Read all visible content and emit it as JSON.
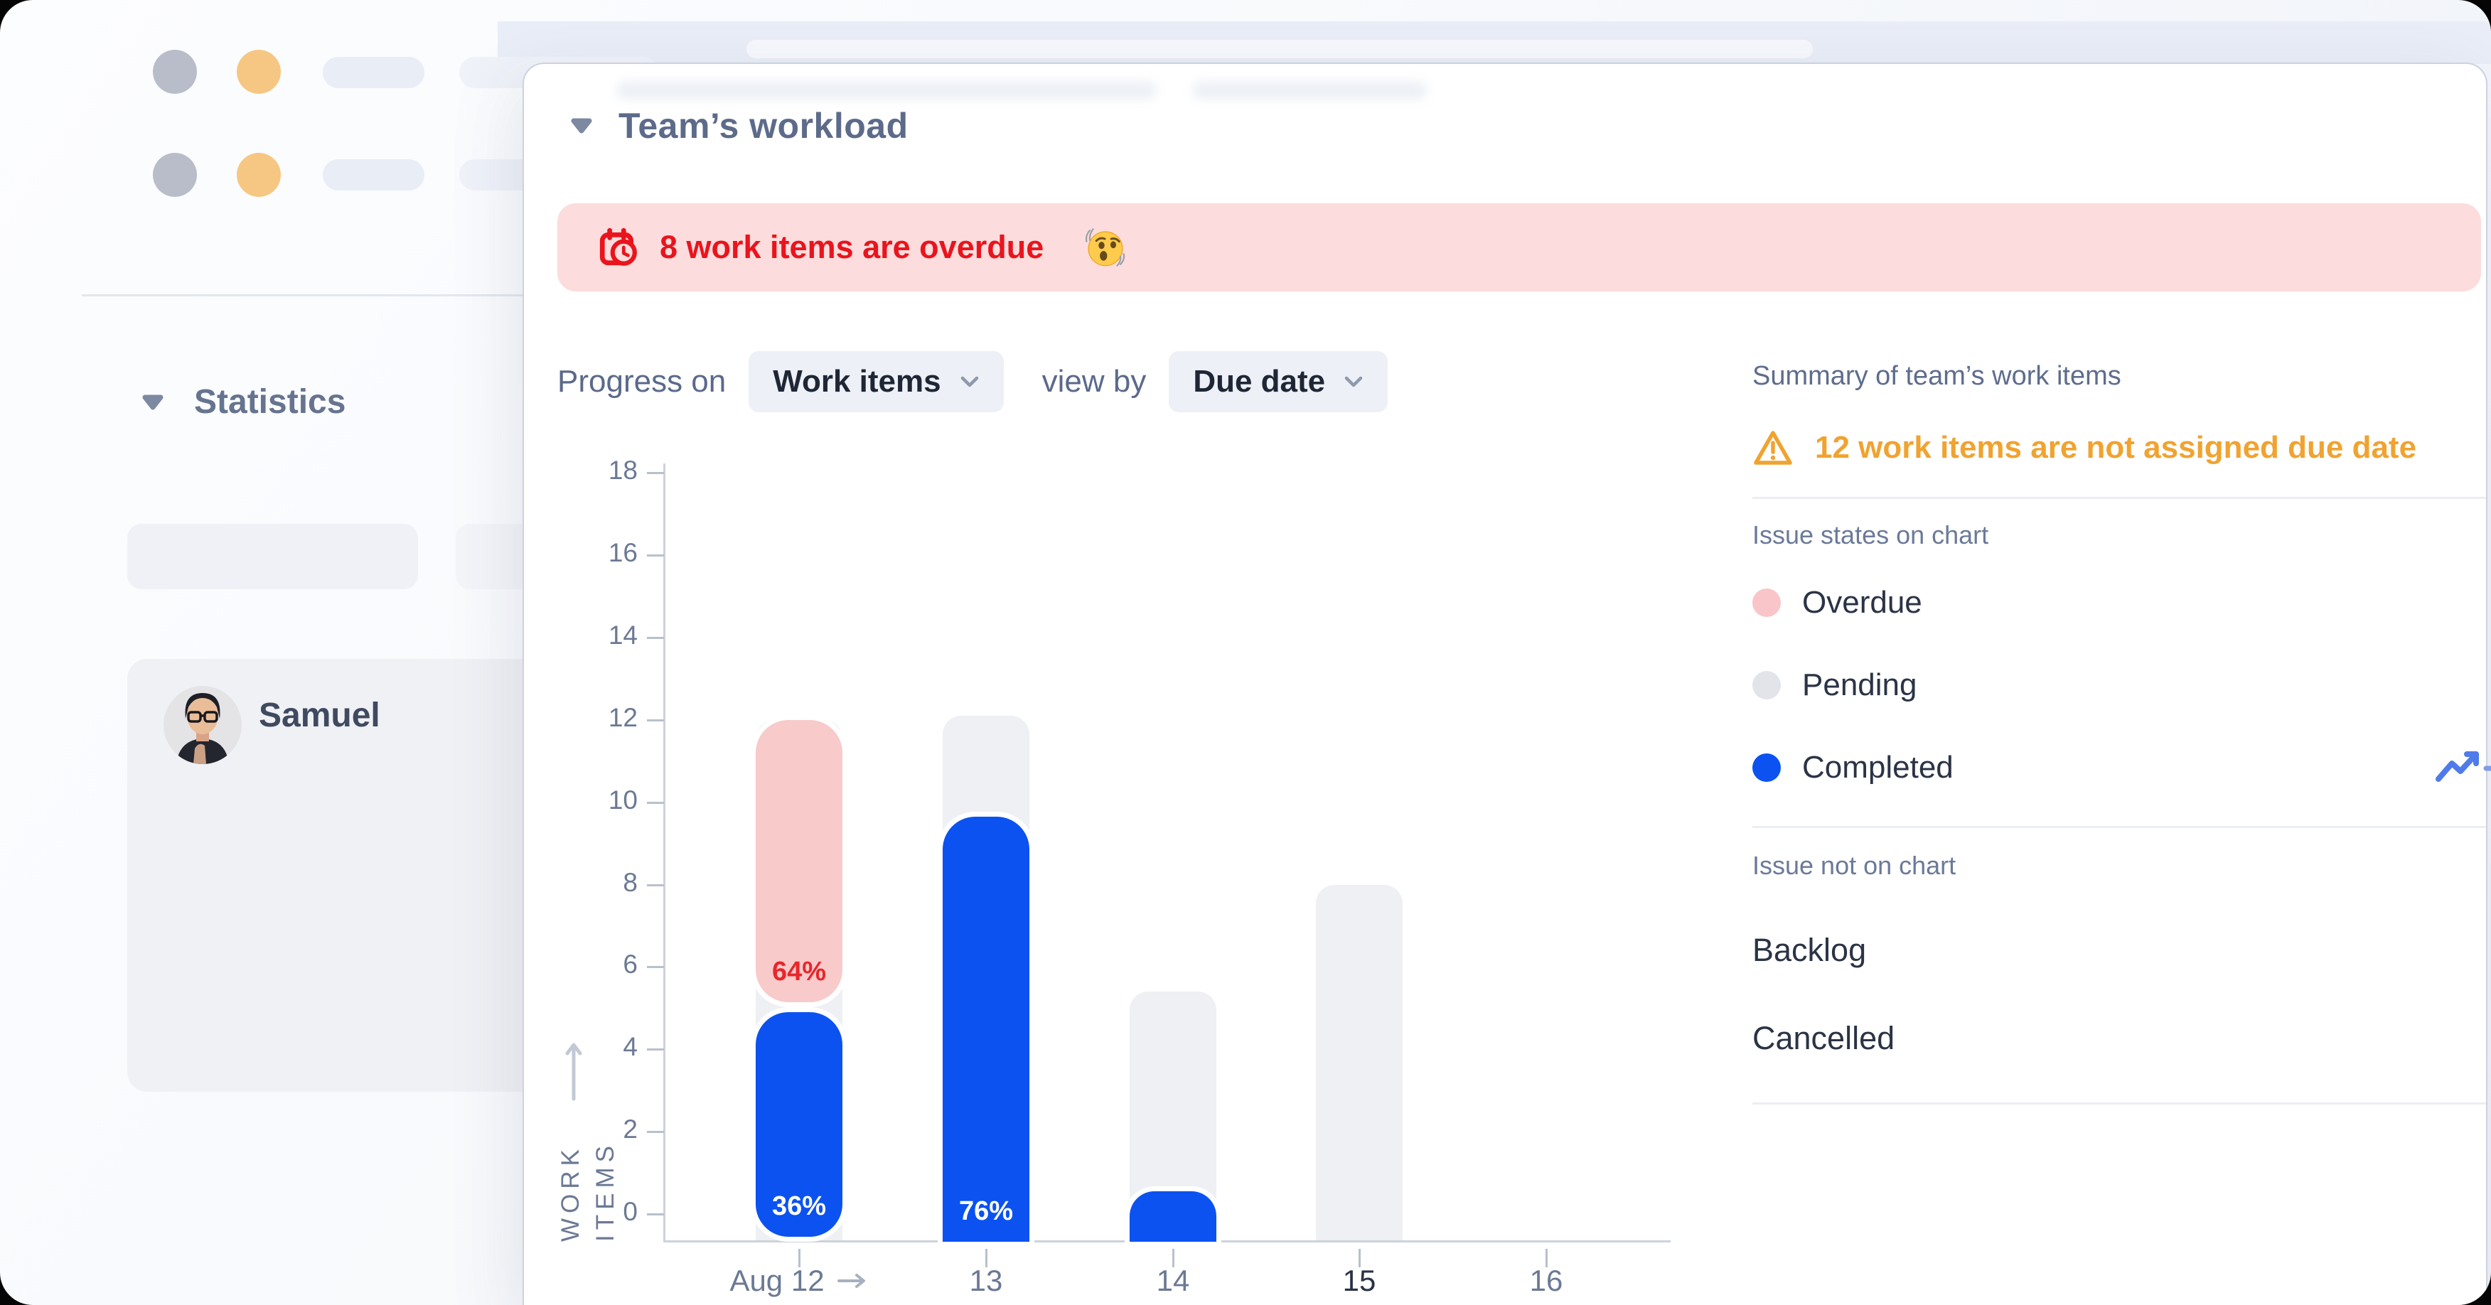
{
  "sidebar": {
    "statistics_label": "Statistics",
    "user_name": "Samuel"
  },
  "panel": {
    "title": "Team’s workload",
    "alert": {
      "text": "8 work items are overdue",
      "bg": "#fcdcdc",
      "color": "#e9141d",
      "icon": "calendar-overdue",
      "emoji": "shaking-face"
    },
    "controls": {
      "progress_on_label": "Progress on",
      "work_items_value": "Work items",
      "view_by_label": "view by",
      "due_date_value": "Due date"
    }
  },
  "summary": {
    "heading": "Summary of team’s work items",
    "warning_text": "12 work items are not assigned due date",
    "warning_color": "#f0a330",
    "on_chart_heading": "Issue states on chart",
    "legend": [
      {
        "label": "Overdue",
        "color": "#f9c5c8"
      },
      {
        "label": "Pending",
        "color": "#e2e4e9"
      },
      {
        "label": "Completed",
        "color": "#0b52f0",
        "trend_icon": true
      }
    ],
    "off_chart_heading": "Issue not on chart",
    "off_chart_items": [
      "Backlog",
      "Cancelled"
    ]
  },
  "theme": {
    "accent_blue": "#0b52f0",
    "overdue_pink": "#f8caca",
    "pending_gray": "#eef0f4",
    "alert_red": "#e9141d",
    "warning_orange": "#f0a330"
  },
  "icons": {
    "collapse": "triangle-down",
    "dropdown": "chevron-down",
    "alert": "calendar-overdue",
    "emoji": "shaking-face",
    "warning": "warning-triangle",
    "trend": "trend-up",
    "x_axis": "arrow-right",
    "y_axis": "arrow-up"
  },
  "chart_data": {
    "type": "bar",
    "stacked": true,
    "title": "",
    "xlabel": "",
    "ylabel": "WORK ITEMS",
    "ylabel_lines": [
      "WORK",
      "ITEMS"
    ],
    "ylim": [
      0,
      18
    ],
    "yticks": [
      0,
      2,
      4,
      6,
      8,
      10,
      12,
      14,
      16,
      18
    ],
    "grid": false,
    "legend_position": "right-panel",
    "categories": [
      "Aug 12",
      "13",
      "14",
      "15",
      "16"
    ],
    "colors": {
      "Overdue": "#f8caca",
      "Pending": "#eef0f4",
      "Completed": "#0b52f0"
    },
    "pct_label_colors": {
      "Overdue": "#e8262b",
      "Completed": "#ffffff"
    },
    "bars": [
      {
        "label": "Aug 12",
        "arrow_after_label": true,
        "pending_total": 12,
        "segments": [
          {
            "state": "Overdue",
            "from": 5.15,
            "to": 12,
            "pct_label": "64%"
          },
          {
            "state": "Completed",
            "from": -0.55,
            "to": 4.9,
            "pct_label": "36%"
          }
        ]
      },
      {
        "label": "13",
        "pending_total": 12.1,
        "segments": [
          {
            "state": "Completed",
            "from": 0,
            "to": 9.65,
            "pct_label": "76%"
          }
        ]
      },
      {
        "label": "14",
        "pending_total": 5.4,
        "segments": [
          {
            "state": "Completed",
            "from": 0,
            "to": 0.55
          }
        ]
      },
      {
        "label": "15",
        "emphasis": true,
        "pending_total": 8,
        "segments": []
      },
      {
        "label": "16",
        "segments": []
      }
    ]
  }
}
